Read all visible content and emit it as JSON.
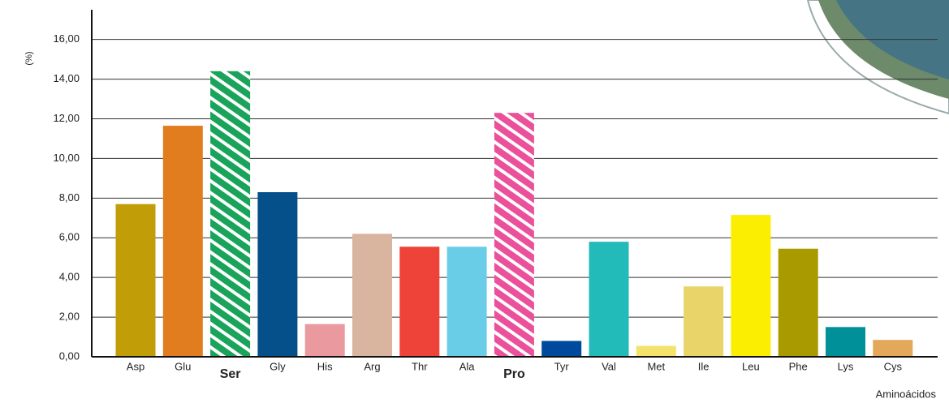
{
  "chart_data": {
    "type": "bar",
    "ylabel": "(%)",
    "xlabel": "Aminoácidos",
    "categories": [
      "Asp",
      "Glu",
      "Ser",
      "Gly",
      "His",
      "Arg",
      "Thr",
      "Ala",
      "Pro",
      "Tyr",
      "Val",
      "Met",
      "Ile",
      "Leu",
      "Phe",
      "Lys",
      "Cys"
    ],
    "values": [
      7.7,
      11.65,
      14.4,
      8.3,
      1.65,
      6.2,
      5.55,
      5.55,
      12.3,
      0.8,
      5.8,
      0.55,
      3.55,
      7.15,
      5.45,
      1.5,
      0.85
    ],
    "colors": [
      "#c19e08",
      "#e27d1f",
      "#1aa35a",
      "#054f8a",
      "#ea9a9e",
      "#d9b49e",
      "#ee4338",
      "#6acde8",
      "#ea519a",
      "#004a9d",
      "#23bbba",
      "#f3e36b",
      "#e9d46a",
      "#fcee00",
      "#a99a00",
      "#00909a",
      "#e3a85a"
    ],
    "hatch": [
      false,
      false,
      true,
      false,
      false,
      false,
      false,
      false,
      true,
      false,
      false,
      false,
      false,
      false,
      false,
      false,
      false
    ],
    "ylim": [
      0,
      17.5
    ],
    "yticks": [
      {
        "value": 0,
        "label": "0,00"
      },
      {
        "value": 2,
        "label": "2,00"
      },
      {
        "value": 4,
        "label": "4,00"
      },
      {
        "value": 6,
        "label": "6,00"
      },
      {
        "value": 8,
        "label": "8,00"
      },
      {
        "value": 10,
        "label": "10,00"
      },
      {
        "value": 12,
        "label": "12,00"
      },
      {
        "value": 14,
        "label": "14,00"
      },
      {
        "value": 16,
        "label": "16,00"
      }
    ],
    "grid": true
  }
}
